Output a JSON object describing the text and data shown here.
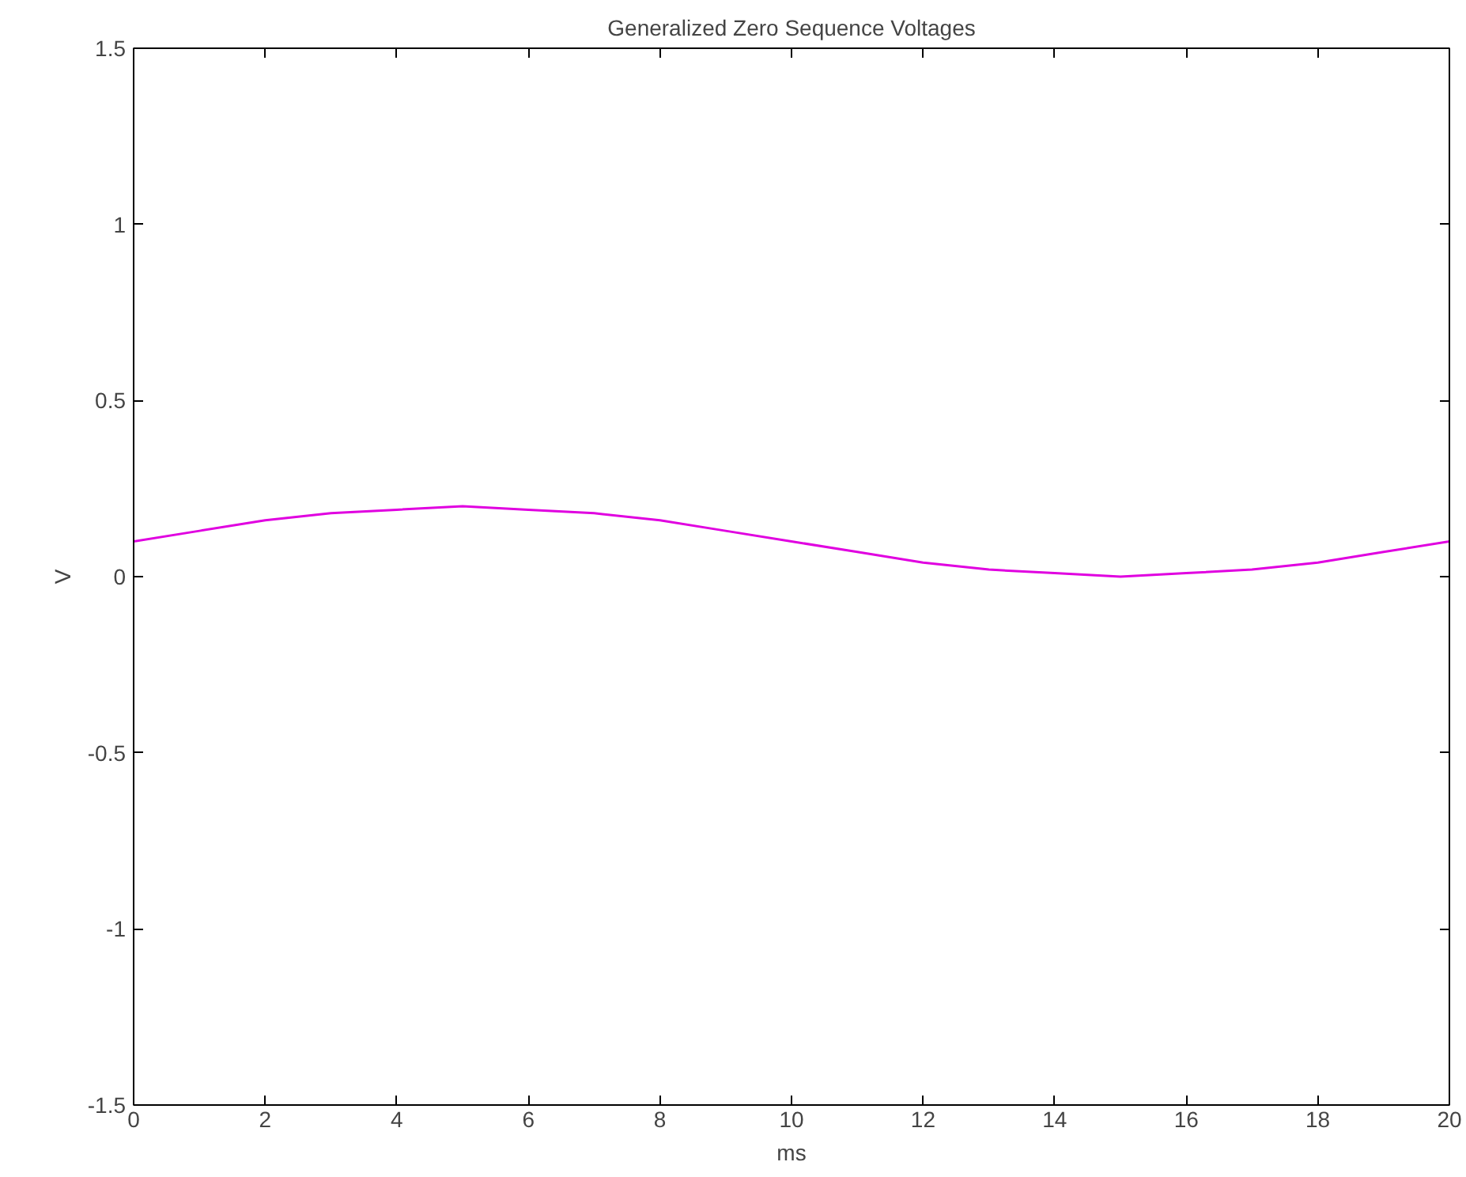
{
  "chart_data": {
    "type": "line",
    "title": "Generalized Zero Sequence Voltages",
    "xlabel": "ms",
    "ylabel": "V",
    "x": [
      0,
      1,
      2,
      3,
      4,
      5,
      6,
      7,
      8,
      9,
      10,
      11,
      12,
      13,
      14,
      15,
      16,
      17,
      18,
      19,
      20
    ],
    "series": [
      {
        "color": "#e000e0",
        "values": [
          0.1,
          0.13,
          0.16,
          0.18,
          0.19,
          0.2,
          0.19,
          0.18,
          0.16,
          0.13,
          0.1,
          0.07,
          0.04,
          0.02,
          0.01,
          0.0,
          0.01,
          0.02,
          0.04,
          0.07,
          0.1
        ]
      }
    ],
    "xlim": [
      0,
      20
    ],
    "xticks": [
      0,
      2,
      4,
      6,
      8,
      10,
      12,
      14,
      16,
      18,
      20
    ],
    "ylim": [
      -1.5,
      1.5
    ],
    "yticks": [
      -1.5,
      -1,
      -0.5,
      0,
      0.5,
      1,
      1.5
    ],
    "grid": false,
    "marker": "none",
    "line_style": "solid"
  }
}
